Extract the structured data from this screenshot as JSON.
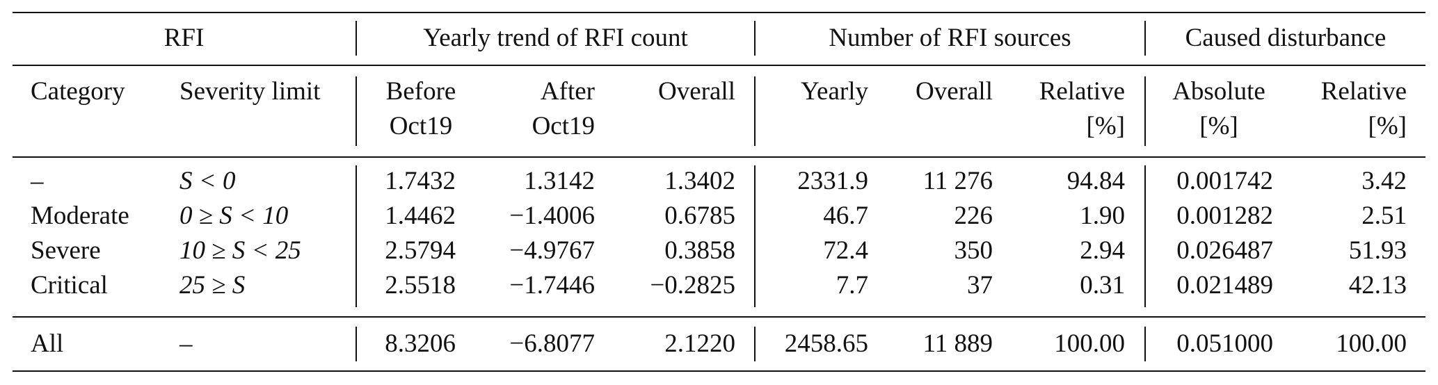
{
  "table": {
    "group_headers": [
      "RFI",
      "Yearly trend of RFI count",
      "Number of RFI sources",
      "Caused disturbance"
    ],
    "sub_headers": [
      {
        "line1": "Category",
        "line2": ""
      },
      {
        "line1": "Severity limit",
        "line2": ""
      },
      {
        "line1": "Before",
        "line2": "Oct19"
      },
      {
        "line1": "After",
        "line2": "Oct19"
      },
      {
        "line1": "Overall",
        "line2": ""
      },
      {
        "line1": "Yearly",
        "line2": ""
      },
      {
        "line1": "Overall",
        "line2": ""
      },
      {
        "line1": "Relative",
        "line2": "[%]"
      },
      {
        "line1": "Absolute",
        "line2": "[%]"
      },
      {
        "line1": "Relative",
        "line2": "[%]"
      }
    ],
    "rows": [
      {
        "category": "–",
        "severity": "S < 0",
        "before": "1.7432",
        "after": "1.3142",
        "trend_overall": "1.3402",
        "yearly": "2331.9",
        "src_overall": "11 276",
        "src_relative": "94.84",
        "absolute": "0.001742",
        "relative": "3.42"
      },
      {
        "category": "Moderate",
        "severity": "0 ≥ S < 10",
        "before": "1.4462",
        "after": "−1.4006",
        "trend_overall": "0.6785",
        "yearly": "46.7",
        "src_overall": "226",
        "src_relative": "1.90",
        "absolute": "0.001282",
        "relative": "2.51"
      },
      {
        "category": "Severe",
        "severity": "10 ≥ S < 25",
        "before": "2.5794",
        "after": "−4.9767",
        "trend_overall": "0.3858",
        "yearly": "72.4",
        "src_overall": "350",
        "src_relative": "2.94",
        "absolute": "0.026487",
        "relative": "51.93"
      },
      {
        "category": "Critical",
        "severity": "25 ≥ S",
        "before": "2.5518",
        "after": "−1.7446",
        "trend_overall": "−0.2825",
        "yearly": "7.7",
        "src_overall": "37",
        "src_relative": "0.31",
        "absolute": "0.021489",
        "relative": "42.13"
      }
    ],
    "total": {
      "category": "All",
      "severity": "–",
      "before": "8.3206",
      "after": "−6.8077",
      "trend_overall": "2.1220",
      "yearly": "2458.65",
      "src_overall": "11 889",
      "src_relative": "100.00",
      "absolute": "0.051000",
      "relative": "100.00"
    }
  }
}
